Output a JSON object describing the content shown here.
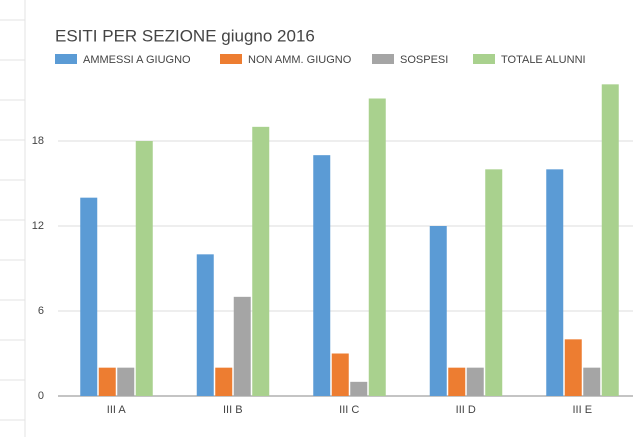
{
  "chart_data": {
    "type": "bar",
    "title": "ESITI PER SEZIONE giugno 2016",
    "categories": [
      "III A",
      "III B",
      "III C",
      "III D",
      "III E"
    ],
    "series": [
      {
        "name": "AMMESSI A GIUGNO",
        "color": "#5b9bd5",
        "values": [
          14,
          10,
          17,
          12,
          16
        ]
      },
      {
        "name": "NON AMM. GIUGNO",
        "color": "#ed7d31",
        "values": [
          2,
          2,
          3,
          2,
          4
        ]
      },
      {
        "name": "SOSPESI",
        "color": "#a5a5a5",
        "values": [
          2,
          7,
          1,
          2,
          2
        ]
      },
      {
        "name": "TOTALE ALUNNI",
        "color": "#a9d18e",
        "values": [
          18,
          19,
          21,
          16,
          22
        ]
      }
    ],
    "ylim": [
      0,
      24
    ],
    "yticks": [
      0,
      6,
      12,
      18
    ],
    "grid": true,
    "legend": "top"
  }
}
